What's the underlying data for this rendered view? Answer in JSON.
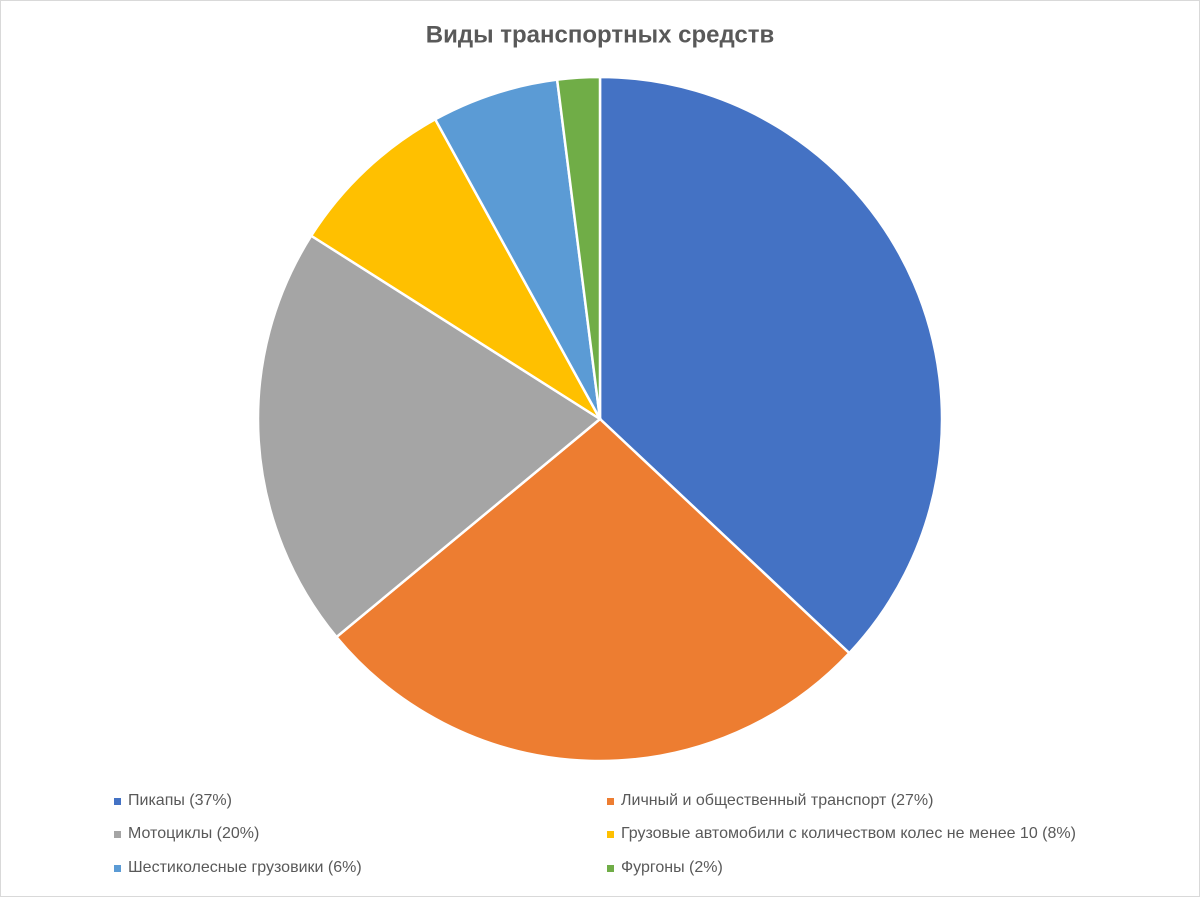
{
  "chart_data": {
    "type": "pie",
    "title": "Виды транспортных средств",
    "categories": [
      "Пикапы (37%)",
      "Личный и общественный транспорт (27%)",
      "Мотоциклы (20%)",
      "Грузовые автомобили с количеством колес не менее 10 (8%)",
      "Шестиколесные грузовики (6%)",
      "Фургоны (2%)"
    ],
    "values": [
      37,
      27,
      20,
      8,
      6,
      2
    ],
    "colors": [
      "#4472c4",
      "#ed7d31",
      "#a5a5a5",
      "#ffc000",
      "#5b9bd5",
      "#70ad47"
    ],
    "legend": "bottom"
  }
}
